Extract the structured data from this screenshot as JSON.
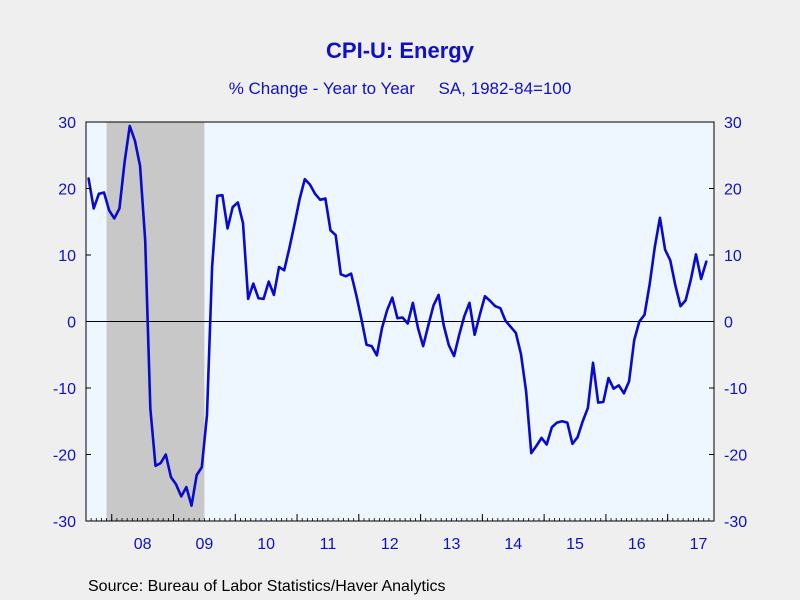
{
  "title": "CPI-U: Energy",
  "subtitle": "% Change - Year to Year     SA, 1982-84=100",
  "source": "Source:  Bureau of Labor Statistics/Haver Analytics",
  "chart_data": {
    "type": "line",
    "title": "CPI-U: Energy",
    "subtitle": "% Change - Year to Year     SA, 1982-84=100",
    "xlabel": "",
    "ylabel": "",
    "x_start": "2007-08",
    "x_end": "2017-09",
    "ylim": [
      -30,
      30
    ],
    "yticks": [
      -30,
      -20,
      -10,
      0,
      10,
      20,
      30
    ],
    "xtick_labels": [
      "08",
      "09",
      "10",
      "11",
      "12",
      "13",
      "14",
      "15",
      "16",
      "17"
    ],
    "recession_shading": {
      "start": "2007-12",
      "end": "2009-06",
      "color": "#c8c8c8"
    },
    "plot_background": "#eef6ff",
    "line_color": "#0a0acc",
    "zero_line": true,
    "grid": false,
    "series": [
      {
        "values": [
          21.5,
          17.0,
          19.2,
          19.4,
          16.7,
          15.5,
          17.0,
          24.0,
          29.4,
          27.2,
          23.4,
          12.2,
          -13.1,
          -21.7,
          -21.3,
          -20.0,
          -23.4,
          -24.5,
          -26.3,
          -24.9,
          -27.7,
          -23.1,
          -21.9,
          -14.1,
          8.2,
          18.9,
          19.0,
          14.0,
          17.2,
          17.9,
          14.8,
          3.4,
          5.7,
          3.5,
          3.4,
          6.0,
          4.0,
          8.2,
          7.7,
          11.0,
          14.6,
          18.4,
          21.4,
          20.6,
          19.2,
          18.3,
          18.5,
          13.7,
          13.0,
          7.1,
          6.8,
          7.2,
          4.0,
          0.4,
          -3.5,
          -3.7,
          -5.1,
          -1.0,
          1.7,
          3.6,
          0.5,
          0.6,
          -0.3,
          2.8,
          -1.0,
          -3.7,
          -0.6,
          2.4,
          4.0,
          -0.6,
          -3.6,
          -5.2,
          -2.0,
          0.8,
          2.8,
          -2.0,
          1.0,
          3.8,
          3.1,
          2.3,
          2.0,
          0.1,
          -0.8,
          -1.7,
          -4.9,
          -10.5,
          -19.8,
          -18.7,
          -17.5,
          -18.5,
          -15.9,
          -15.2,
          -15.0,
          -15.2,
          -18.4,
          -17.4,
          -15.0,
          -13.0,
          -6.2,
          -12.2,
          -12.1,
          -8.5,
          -10.1,
          -9.6,
          -10.8,
          -9.0,
          -2.8,
          0.0,
          1.0,
          5.6,
          11.2,
          15.6,
          10.8,
          9.2,
          5.4,
          2.3,
          3.2,
          6.3,
          10.1,
          6.4,
          9.0
        ]
      }
    ]
  }
}
